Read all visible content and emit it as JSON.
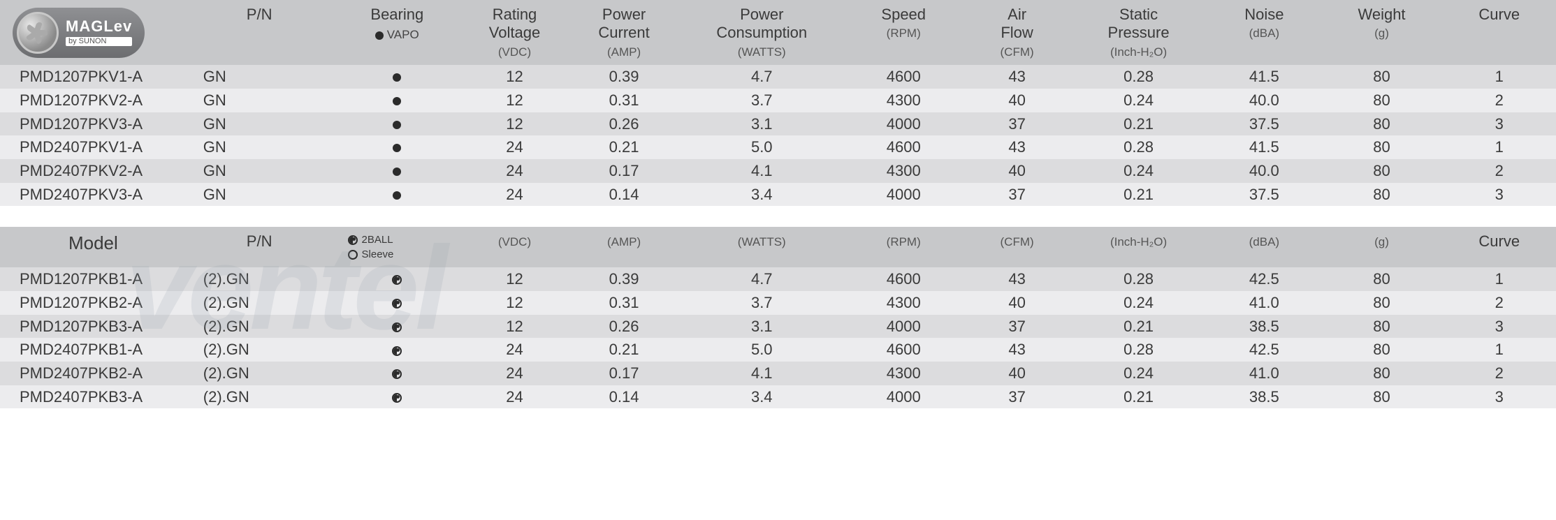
{
  "colors": {
    "header_bg": "#c7c8ca",
    "row_odd": "#dcdcde",
    "row_even": "#ececee",
    "text": "#3a3a3a",
    "dot": "#2b2b2b"
  },
  "logo": {
    "brand": "MAGLev",
    "subtext": "by SUNON"
  },
  "table1": {
    "headers": {
      "pn": "P/N",
      "bearing": "Bearing",
      "bearing_sub_icon": "black-dot",
      "bearing_sub_label": "VAPO",
      "vdc_label": "Rating\nVoltage",
      "vdc_unit": "(VDC)",
      "amp_label": "Power\nCurrent",
      "amp_unit": "(AMP)",
      "watts_label": "Power\nConsumption",
      "watts_unit": "(WATTS)",
      "rpm_label": "Speed",
      "rpm_unit": "(RPM)",
      "cfm_label": "Air\nFlow",
      "cfm_unit": "(CFM)",
      "press_label": "Static\nPressure",
      "press_unit": "(Inch-H₂O)",
      "noise_label": "Noise",
      "noise_unit": "(dBA)",
      "weight_label": "Weight",
      "weight_unit": "(g)",
      "curve_label": "Curve"
    },
    "rows": [
      {
        "model": "PMD1207PKV1-A",
        "pn": "GN",
        "bearing": "dot",
        "vdc": "12",
        "amp": "0.39",
        "watts": "4.7",
        "rpm": "4600",
        "cfm": "43",
        "press": "0.28",
        "noise": "41.5",
        "weight": "80",
        "curve": "1"
      },
      {
        "model": "PMD1207PKV2-A",
        "pn": "GN",
        "bearing": "dot",
        "vdc": "12",
        "amp": "0.31",
        "watts": "3.7",
        "rpm": "4300",
        "cfm": "40",
        "press": "0.24",
        "noise": "40.0",
        "weight": "80",
        "curve": "2"
      },
      {
        "model": "PMD1207PKV3-A",
        "pn": "GN",
        "bearing": "dot",
        "vdc": "12",
        "amp": "0.26",
        "watts": "3.1",
        "rpm": "4000",
        "cfm": "37",
        "press": "0.21",
        "noise": "37.5",
        "weight": "80",
        "curve": "3"
      },
      {
        "model": "PMD2407PKV1-A",
        "pn": "GN",
        "bearing": "dot",
        "vdc": "24",
        "amp": "0.21",
        "watts": "5.0",
        "rpm": "4600",
        "cfm": "43",
        "press": "0.28",
        "noise": "41.5",
        "weight": "80",
        "curve": "1"
      },
      {
        "model": "PMD2407PKV2-A",
        "pn": "GN",
        "bearing": "dot",
        "vdc": "24",
        "amp": "0.17",
        "watts": "4.1",
        "rpm": "4300",
        "cfm": "40",
        "press": "0.24",
        "noise": "40.0",
        "weight": "80",
        "curve": "2"
      },
      {
        "model": "PMD2407PKV3-A",
        "pn": "GN",
        "bearing": "dot",
        "vdc": "24",
        "amp": "0.14",
        "watts": "3.4",
        "rpm": "4000",
        "cfm": "37",
        "press": "0.21",
        "noise": "37.5",
        "weight": "80",
        "curve": "3"
      }
    ]
  },
  "table2": {
    "headers": {
      "model": "Model",
      "pn": "P/N",
      "bearing_legend_ball": "2BALL",
      "bearing_legend_sleeve": "Sleeve",
      "vdc_unit": "(VDC)",
      "amp_unit": "(AMP)",
      "watts_unit": "(WATTS)",
      "rpm_unit": "(RPM)",
      "cfm_unit": "(CFM)",
      "press_unit": "(Inch-H₂O)",
      "noise_unit": "(dBA)",
      "weight_unit": "(g)",
      "curve_label": "Curve"
    },
    "rows": [
      {
        "model": "PMD1207PKB1-A",
        "pn": "(2).GN",
        "bearing": "ball",
        "vdc": "12",
        "amp": "0.39",
        "watts": "4.7",
        "rpm": "4600",
        "cfm": "43",
        "press": "0.28",
        "noise": "42.5",
        "weight": "80",
        "curve": "1"
      },
      {
        "model": "PMD1207PKB2-A",
        "pn": "(2).GN",
        "bearing": "ball",
        "vdc": "12",
        "amp": "0.31",
        "watts": "3.7",
        "rpm": "4300",
        "cfm": "40",
        "press": "0.24",
        "noise": "41.0",
        "weight": "80",
        "curve": "2"
      },
      {
        "model": "PMD1207PKB3-A",
        "pn": "(2).GN",
        "bearing": "ball",
        "vdc": "12",
        "amp": "0.26",
        "watts": "3.1",
        "rpm": "4000",
        "cfm": "37",
        "press": "0.21",
        "noise": "38.5",
        "weight": "80",
        "curve": "3"
      },
      {
        "model": "PMD2407PKB1-A",
        "pn": "(2).GN",
        "bearing": "ball",
        "vdc": "24",
        "amp": "0.21",
        "watts": "5.0",
        "rpm": "4600",
        "cfm": "43",
        "press": "0.28",
        "noise": "42.5",
        "weight": "80",
        "curve": "1"
      },
      {
        "model": "PMD2407PKB2-A",
        "pn": "(2).GN",
        "bearing": "ball",
        "vdc": "24",
        "amp": "0.17",
        "watts": "4.1",
        "rpm": "4300",
        "cfm": "40",
        "press": "0.24",
        "noise": "41.0",
        "weight": "80",
        "curve": "2"
      },
      {
        "model": "PMD2407PKB3-A",
        "pn": "(2).GN",
        "bearing": "ball",
        "vdc": "24",
        "amp": "0.14",
        "watts": "3.4",
        "rpm": "4000",
        "cfm": "37",
        "press": "0.21",
        "noise": "38.5",
        "weight": "80",
        "curve": "3"
      }
    ]
  },
  "watermark_text": "ventel"
}
